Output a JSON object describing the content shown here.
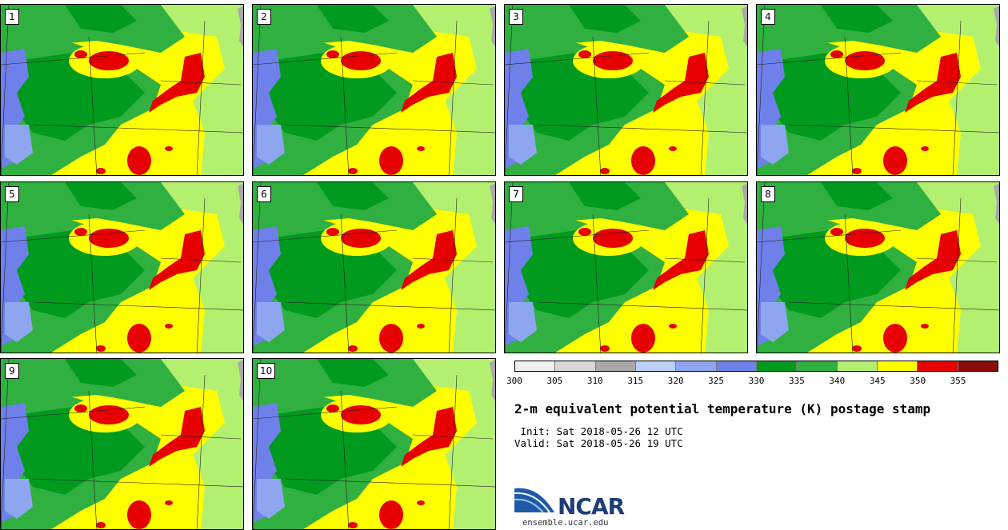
{
  "panels": [
    {
      "label": "1"
    },
    {
      "label": "2"
    },
    {
      "label": "3"
    },
    {
      "label": "4"
    },
    {
      "label": "5"
    },
    {
      "label": "6"
    },
    {
      "label": "7"
    },
    {
      "label": "8"
    },
    {
      "label": "9"
    },
    {
      "label": "10"
    }
  ],
  "colorbar": {
    "colors": [
      "#f0f0f0",
      "#d8d8d8",
      "#a8a8a8",
      "#bcd0f5",
      "#8ea6f0",
      "#6f80ea",
      "#009a1e",
      "#30b040",
      "#b4f070",
      "#ffff00",
      "#e60000",
      "#8c0a0a"
    ],
    "ticks": [
      "300",
      "305",
      "310",
      "315",
      "320",
      "325",
      "330",
      "335",
      "340",
      "345",
      "350",
      "355"
    ]
  },
  "title": "2-m equivalent potential temperature (K) postage stamp",
  "init_line": " Init: Sat 2018-05-26 12 UTC",
  "valid_line": "Valid: Sat 2018-05-26 19 UTC",
  "logo": {
    "text": "NCAR",
    "url": "ensemble.ucar.edu"
  }
}
